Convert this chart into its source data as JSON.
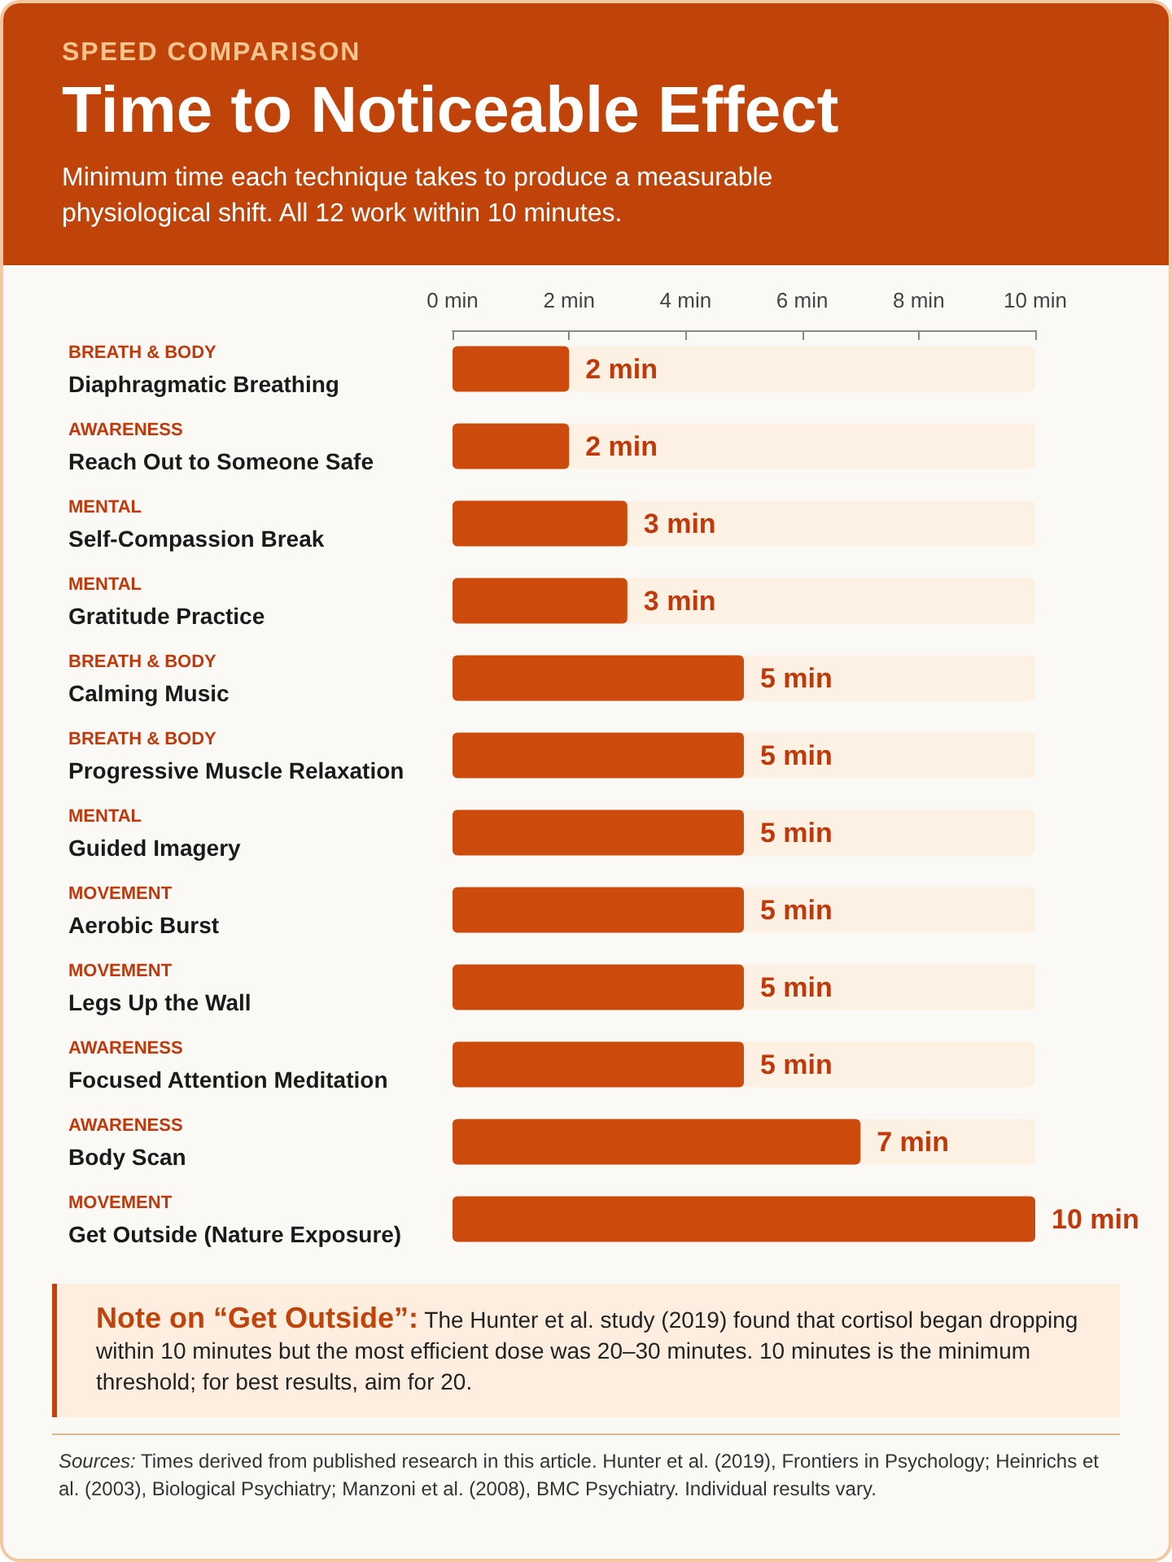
{
  "chart_data": {
    "type": "bar",
    "orientation": "horizontal",
    "title": "Time to Noticeable Effect",
    "subtitle": "Minimum time each technique takes to produce a measurable physiological shift. All 12 work within 10 minutes.",
    "annotations": [
      "SPEED COMPARISON",
      "Note on “Get Outside”: The Hunter et al. study (2019) found that cortisol began dropping within 10 minutes but the most efficient dose was 20–30 minutes. 10 minutes is the minimum threshold; for best results, aim for 20.",
      "Sources: Times derived from published research in this article. Hunter et al. (2019), Frontiers in Psychology; Heinrichs et al. (2003), Biological Psychiatry; Manzoni et al. (2008), BMC Psychiatry. Individual results vary."
    ],
    "categories": [
      "BREATH & BODY\nDiaphragmatic Breathing",
      "AWARENESS\nReach Out to Someone Safe",
      "MENTAL\nSelf-Compassion Break",
      "MENTAL\nGratitude Practice",
      "BREATH & BODY\nCalming Music",
      "BREATH & BODY\nProgressive Muscle Relaxation",
      "MENTAL\nGuided Imagery",
      "MOVEMENT\nAerobic Burst",
      "MOVEMENT\nLegs Up the Wall",
      "AWARENESS\nFocused Attention Meditation",
      "AWARENESS\nBody Scan",
      "MOVEMENT\nGet Outside (Nature Exposure)"
    ],
    "values": [
      2,
      2,
      3,
      3,
      5,
      5,
      5,
      5,
      5,
      5,
      7,
      10
    ],
    "value_labels": [
      "2 min",
      "2 min",
      "3 min",
      "3 min",
      "5 min",
      "5 min",
      "5 min",
      "5 min",
      "5 min",
      "5 min",
      "7 min",
      "10 min"
    ],
    "color": "#cc4a0c",
    "xlim": [
      0,
      10
    ],
    "xticks": [
      {
        "value": 0,
        "label": "0 min"
      },
      {
        "value": 2,
        "label": "2 min"
      },
      {
        "value": 4,
        "label": "4 min"
      },
      {
        "value": 6,
        "label": "6 min"
      },
      {
        "value": 8,
        "label": "8 min"
      },
      {
        "value": 10,
        "label": "10 min"
      }
    ]
  }
}
